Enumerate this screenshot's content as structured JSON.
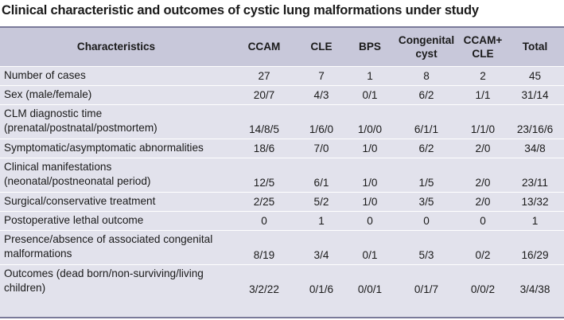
{
  "caption": "Clinical characteristic and outcomes of cystic lung malformations under study",
  "table": {
    "headers": [
      "Characteristics",
      "CCAM",
      "CLE",
      "BPS",
      "Congenital cyst",
      "CCAM+ CLE",
      "Total"
    ],
    "header_lines": [
      [
        "Characteristics"
      ],
      [
        "CCAM"
      ],
      [
        "CLE"
      ],
      [
        "BPS"
      ],
      [
        "Congenital",
        "cyst"
      ],
      [
        "CCAM+",
        "CLE"
      ],
      [
        "Total"
      ]
    ],
    "rows": [
      {
        "label": [
          "Number of cases"
        ],
        "values": [
          "27",
          "7",
          "1",
          "8",
          "2",
          "45"
        ]
      },
      {
        "label": [
          "Sex (male/female)"
        ],
        "values": [
          "20/7",
          "4/3",
          "0/1",
          "6/2",
          "1/1",
          "31/14"
        ]
      },
      {
        "label": [
          "CLM diagnostic time",
          "(prenatal/postnatal/postmortem)"
        ],
        "values": [
          "14/8/5",
          "1/6/0",
          "1/0/0",
          "6/1/1",
          "1/1/0",
          "23/16/6"
        ]
      },
      {
        "label": [
          "Symptomatic/asymptomatic abnormalities"
        ],
        "values": [
          "18/6",
          "7/0",
          "1/0",
          "6/2",
          "2/0",
          "34/8"
        ]
      },
      {
        "label": [
          "Clinical manifestations",
          "(neonatal/postneonatal period)"
        ],
        "values": [
          "12/5",
          "6/1",
          "1/0",
          "1/5",
          "2/0",
          "23/11"
        ]
      },
      {
        "label": [
          "Surgical/conservative treatment"
        ],
        "values": [
          "2/25",
          "5/2",
          "1/0",
          "3/5",
          "2/0",
          "13/32"
        ]
      },
      {
        "label": [
          "Postoperative lethal outcome"
        ],
        "values": [
          "0",
          "1",
          "0",
          "0",
          "0",
          "1"
        ]
      },
      {
        "label": [
          "Presence/absence of associated congenital",
          "malformations"
        ],
        "values": [
          "8/19",
          "3/4",
          "0/1",
          "5/3",
          "0/2",
          "16/29"
        ]
      },
      {
        "label": [
          "Outcomes (dead born/non-surviving/living",
          "children)"
        ],
        "values": [
          "3/2/22",
          "0/1/6",
          "0/0/1",
          "0/1/7",
          "0/0/2",
          "3/4/38"
        ]
      }
    ]
  }
}
